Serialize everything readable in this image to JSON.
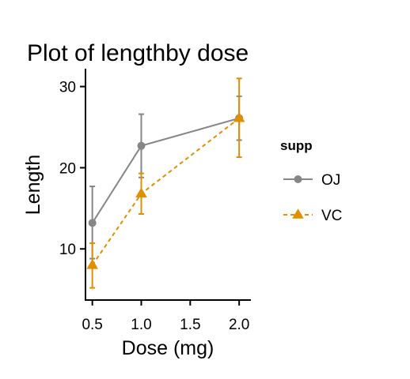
{
  "chart_data": {
    "type": "line",
    "title": "Plot of lengthby dose",
    "xlabel": "Dose (mg)",
    "ylabel": "Length",
    "xlim": [
      0.43,
      2.12
    ],
    "ylim": [
      3.7,
      32.2
    ],
    "x_ticks": [
      0.5,
      1.0,
      1.5,
      2.0
    ],
    "x_tick_labels": [
      "0.5",
      "1.0",
      "1.5",
      "2.0"
    ],
    "y_ticks": [
      10,
      20,
      30
    ],
    "y_tick_labels": [
      "10",
      "20",
      "30"
    ],
    "grid": false,
    "legend": {
      "title": "supp",
      "position": "right"
    },
    "series": [
      {
        "name": "OJ",
        "color": "#868686",
        "marker": "circle",
        "line_style": "solid",
        "x": [
          0.5,
          1.0,
          2.0
        ],
        "y": [
          13.2,
          22.7,
          26.1
        ],
        "error_low": [
          8.8,
          18.8,
          23.4
        ],
        "error_high": [
          17.7,
          26.6,
          28.8
        ]
      },
      {
        "name": "VC",
        "color": "#DF8F00",
        "marker": "triangle",
        "line_style": "dashed",
        "x": [
          0.5,
          1.0,
          2.0
        ],
        "y": [
          8.0,
          16.8,
          26.1
        ],
        "error_low": [
          5.2,
          14.3,
          21.3
        ],
        "error_high": [
          10.7,
          19.3,
          31.0
        ]
      }
    ]
  }
}
